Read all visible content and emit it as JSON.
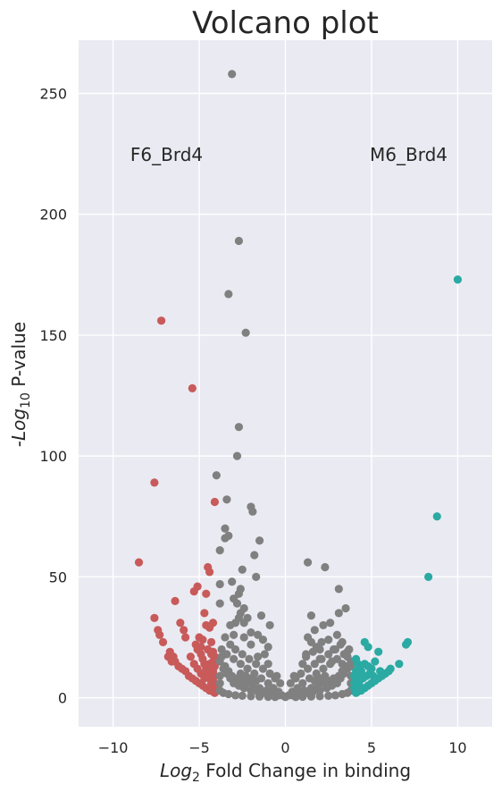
{
  "chart_data": {
    "type": "scatter",
    "title": "Volcano plot",
    "xlabel_prefix": "Log",
    "xlabel_sub": "2",
    "xlabel_suffix": " Fold Change in binding",
    "ylabel_prefix": "-Log",
    "ylabel_sub": "10",
    "ylabel_suffix": " P-value",
    "xlim": [
      -12,
      12
    ],
    "ylim": [
      -12,
      272
    ],
    "xticks": [
      -10,
      -5,
      0,
      5,
      10
    ],
    "yticks": [
      0,
      50,
      100,
      150,
      200,
      250
    ],
    "grid": true,
    "background": "#eaeaf2",
    "annotations": [
      {
        "text": "F6_Brd4",
        "x": -9.0,
        "y": 222
      },
      {
        "text": "M6_Brd4",
        "x": 4.9,
        "y": 222
      }
    ],
    "series": [
      {
        "color": "#c85a5a",
        "points": [
          [
            -7.2,
            156
          ],
          [
            -5.4,
            128
          ],
          [
            -7.6,
            89
          ],
          [
            -4.1,
            81
          ],
          [
            -8.5,
            56
          ],
          [
            -4.5,
            54
          ],
          [
            -4.4,
            52
          ],
          [
            -6.4,
            40
          ],
          [
            -5.1,
            46
          ],
          [
            -5.3,
            44
          ],
          [
            -4.6,
            43
          ],
          [
            -7.6,
            33
          ],
          [
            -6.1,
            31
          ],
          [
            -4.2,
            31
          ],
          [
            -4.7,
            35
          ],
          [
            -7.4,
            28
          ],
          [
            -7.3,
            26
          ],
          [
            -5.9,
            28
          ],
          [
            -5.8,
            25
          ],
          [
            -7.1,
            23
          ],
          [
            -5.0,
            25
          ],
          [
            -4.8,
            24
          ],
          [
            -4.6,
            30
          ],
          [
            -4.4,
            29
          ],
          [
            -4.3,
            23
          ],
          [
            -6.7,
            19
          ],
          [
            -6.5,
            17
          ],
          [
            -6.4,
            15
          ],
          [
            -6.2,
            13
          ],
          [
            -6.0,
            12
          ],
          [
            -5.8,
            11
          ],
          [
            -5.6,
            9
          ],
          [
            -5.4,
            8
          ],
          [
            -5.2,
            7
          ],
          [
            -5.0,
            6
          ],
          [
            -4.8,
            5
          ],
          [
            -4.6,
            4
          ],
          [
            -4.4,
            3
          ],
          [
            -4.2,
            2.5
          ],
          [
            -5.2,
            22
          ],
          [
            -5.1,
            20
          ],
          [
            -4.9,
            18
          ],
          [
            -4.8,
            16
          ],
          [
            -4.7,
            14
          ],
          [
            -4.6,
            12
          ],
          [
            -4.5,
            10
          ],
          [
            -4.4,
            8
          ],
          [
            -4.3,
            6
          ],
          [
            -4.2,
            19
          ],
          [
            -4.1,
            17
          ],
          [
            -4.2,
            15
          ],
          [
            -4.1,
            13
          ],
          [
            -4.2,
            11
          ],
          [
            -4.1,
            9
          ],
          [
            -4.2,
            7
          ],
          [
            -4.1,
            5
          ],
          [
            -4.0,
            4
          ],
          [
            -5.5,
            17
          ],
          [
            -5.3,
            14
          ],
          [
            -5.1,
            12
          ],
          [
            -4.9,
            10
          ],
          [
            -4.7,
            8
          ],
          [
            -6.8,
            17
          ],
          [
            -6.6,
            15
          ],
          [
            -4.9,
            21
          ],
          [
            -4.5,
            20
          ],
          [
            -4.3,
            18
          ],
          [
            -4.4,
            14
          ],
          [
            -4.3,
            12
          ],
          [
            -4.2,
            10
          ],
          [
            -4.3,
            9
          ],
          [
            -4.1,
            3
          ],
          [
            -4.1,
            2
          ]
        ]
      },
      {
        "color": "#808080",
        "points": [
          [
            -3.1,
            258
          ],
          [
            -2.7,
            189
          ],
          [
            -3.3,
            167
          ],
          [
            -2.3,
            151
          ],
          [
            -2.7,
            112
          ],
          [
            -2.8,
            100
          ],
          [
            -4.0,
            92
          ],
          [
            -3.4,
            82
          ],
          [
            -2.0,
            79
          ],
          [
            -1.9,
            77
          ],
          [
            -3.5,
            70
          ],
          [
            -3.3,
            67
          ],
          [
            -3.5,
            66
          ],
          [
            -1.5,
            65
          ],
          [
            -3.8,
            61
          ],
          [
            -1.8,
            59
          ],
          [
            -2.5,
            53
          ],
          [
            -3.1,
            48
          ],
          [
            -3.8,
            47
          ],
          [
            -1.7,
            50
          ],
          [
            -2.6,
            45
          ],
          [
            -2.7,
            43
          ],
          [
            -3.0,
            41
          ],
          [
            -2.8,
            39
          ],
          [
            -2.4,
            37
          ],
          [
            -3.8,
            39
          ],
          [
            -2.6,
            35
          ],
          [
            -2.7,
            33
          ],
          [
            -3.2,
            30
          ],
          [
            -2.2,
            33
          ],
          [
            -1.4,
            34
          ],
          [
            -0.9,
            30
          ],
          [
            -2.9,
            31
          ],
          [
            -2.4,
            31
          ],
          [
            -2.0,
            27
          ],
          [
            -1.6,
            26
          ],
          [
            -1.3,
            24
          ],
          [
            -1.0,
            21
          ],
          [
            1.3,
            56
          ],
          [
            2.3,
            54
          ],
          [
            3.1,
            45
          ],
          [
            3.5,
            37
          ],
          [
            3.1,
            35
          ],
          [
            1.5,
            34
          ],
          [
            2.6,
            31
          ],
          [
            2.2,
            30
          ],
          [
            1.7,
            28
          ],
          [
            1.3,
            25
          ],
          [
            1.5,
            23
          ],
          [
            2.1,
            23
          ],
          [
            2.5,
            24
          ],
          [
            3.3,
            23
          ],
          [
            1.8,
            21
          ],
          [
            2.8,
            20
          ],
          [
            3.6,
            19
          ],
          [
            1.2,
            17
          ],
          [
            2.0,
            16
          ],
          [
            2.7,
            15
          ],
          [
            3.3,
            14
          ],
          [
            3.8,
            13
          ],
          [
            -3.7,
            20
          ],
          [
            -3.4,
            18
          ],
          [
            -3.0,
            16
          ],
          [
            -2.6,
            14
          ],
          [
            -2.2,
            12
          ],
          [
            -1.8,
            10
          ],
          [
            -1.4,
            8
          ],
          [
            -1.0,
            6
          ],
          [
            -0.7,
            4
          ],
          [
            -0.4,
            2.5
          ],
          [
            -0.2,
            1
          ],
          [
            0.0,
            0.3
          ],
          [
            0.2,
            1
          ],
          [
            0.4,
            2.5
          ],
          [
            0.7,
            4
          ],
          [
            1.0,
            6
          ],
          [
            1.4,
            8
          ],
          [
            1.8,
            10
          ],
          [
            2.2,
            12
          ],
          [
            2.6,
            14
          ],
          [
            3.0,
            16
          ],
          [
            3.4,
            18
          ],
          [
            3.7,
            20
          ],
          [
            -3.8,
            15
          ],
          [
            -3.6,
            12
          ],
          [
            -3.4,
            10
          ],
          [
            -3.2,
            8
          ],
          [
            -3.0,
            6
          ],
          [
            -2.7,
            5
          ],
          [
            -2.4,
            4
          ],
          [
            -2.0,
            3
          ],
          [
            -1.6,
            2.5
          ],
          [
            -1.2,
            2
          ],
          [
            -0.8,
            1.5
          ],
          [
            -0.4,
            1
          ],
          [
            0.4,
            1
          ],
          [
            0.8,
            1.5
          ],
          [
            1.2,
            2
          ],
          [
            1.6,
            2.5
          ],
          [
            2.0,
            3
          ],
          [
            2.4,
            4
          ],
          [
            2.7,
            5
          ],
          [
            3.0,
            6
          ],
          [
            3.2,
            8
          ],
          [
            3.4,
            10
          ],
          [
            3.6,
            12
          ],
          [
            3.8,
            15
          ],
          [
            -3.8,
            9
          ],
          [
            -3.8,
            6
          ],
          [
            -3.8,
            3
          ],
          [
            -3.6,
            2
          ],
          [
            -3.3,
            1.5
          ],
          [
            -2.9,
            1
          ],
          [
            -2.5,
            0.8
          ],
          [
            -2.0,
            0.6
          ],
          [
            -1.5,
            0.5
          ],
          [
            -1.0,
            0.4
          ],
          [
            -0.6,
            0.3
          ],
          [
            0.6,
            0.3
          ],
          [
            1.0,
            0.4
          ],
          [
            1.5,
            0.5
          ],
          [
            2.0,
            0.6
          ],
          [
            2.5,
            0.8
          ],
          [
            2.9,
            1
          ],
          [
            3.3,
            1.5
          ],
          [
            3.6,
            2
          ],
          [
            3.8,
            3
          ],
          [
            3.8,
            6
          ],
          [
            3.8,
            9
          ],
          [
            -3.2,
            22
          ],
          [
            -2.9,
            20
          ],
          [
            -2.5,
            18
          ],
          [
            -2.1,
            16
          ],
          [
            -1.7,
            14
          ],
          [
            -1.3,
            12
          ],
          [
            -0.9,
            10
          ],
          [
            -0.6,
            8
          ],
          [
            -0.3,
            6
          ],
          [
            0.3,
            6
          ],
          [
            0.6,
            8
          ],
          [
            0.9,
            10
          ],
          [
            1.3,
            12
          ],
          [
            1.7,
            14
          ],
          [
            2.1,
            16
          ],
          [
            2.5,
            18
          ],
          [
            2.9,
            20
          ],
          [
            3.2,
            22
          ],
          [
            -3.5,
            25
          ],
          [
            -2.0,
            22
          ],
          [
            -1.2,
            18
          ],
          [
            1.2,
            18
          ],
          [
            2.0,
            20
          ],
          [
            3.0,
            26
          ],
          [
            -3.5,
            13
          ],
          [
            -3.3,
            11
          ],
          [
            -3.1,
            9
          ],
          [
            -2.8,
            8
          ],
          [
            -2.5,
            7
          ],
          [
            -2.2,
            6
          ],
          [
            -1.9,
            5
          ],
          [
            -1.5,
            4
          ],
          [
            -1.1,
            3
          ],
          [
            -0.8,
            2
          ],
          [
            0.8,
            2
          ],
          [
            1.1,
            3
          ],
          [
            1.5,
            4
          ],
          [
            1.9,
            5
          ],
          [
            2.2,
            6
          ],
          [
            2.5,
            7
          ],
          [
            2.8,
            8
          ],
          [
            3.1,
            9
          ],
          [
            3.3,
            11
          ],
          [
            3.5,
            13
          ],
          [
            -2.6,
            10
          ],
          [
            -2.3,
            9
          ],
          [
            -2.0,
            8
          ],
          [
            -1.7,
            7
          ],
          [
            2.3,
            9
          ],
          [
            2.0,
            8
          ],
          [
            1.7,
            7
          ],
          [
            -1.6,
            17
          ],
          [
            -0.5,
            9
          ],
          [
            0.5,
            9
          ],
          [
            1.6,
            19
          ],
          [
            3.6,
            17
          ],
          [
            -3.7,
            17
          ],
          [
            -3.0,
            26
          ],
          [
            -2.4,
            25
          ],
          [
            1.0,
            14
          ],
          [
            -1.0,
            14
          ]
        ]
      },
      {
        "color": "#2aaaa2",
        "points": [
          [
            10.0,
            173
          ],
          [
            8.8,
            75
          ],
          [
            8.3,
            50
          ],
          [
            7.1,
            23
          ],
          [
            7.0,
            22
          ],
          [
            5.4,
            19
          ],
          [
            4.6,
            23
          ],
          [
            4.8,
            21
          ],
          [
            6.6,
            14
          ],
          [
            5.2,
            15
          ],
          [
            6.1,
            12
          ],
          [
            6.0,
            11
          ],
          [
            5.8,
            10
          ],
          [
            5.6,
            9
          ],
          [
            5.4,
            8
          ],
          [
            5.2,
            7
          ],
          [
            5.0,
            6
          ],
          [
            4.8,
            5
          ],
          [
            4.6,
            4
          ],
          [
            4.4,
            3
          ],
          [
            4.2,
            2.5
          ],
          [
            4.1,
            2
          ],
          [
            4.9,
            10
          ],
          [
            4.7,
            9
          ],
          [
            4.5,
            8
          ],
          [
            4.3,
            7
          ],
          [
            4.2,
            6
          ],
          [
            4.1,
            5
          ],
          [
            4.0,
            4
          ],
          [
            4.3,
            12
          ],
          [
            4.2,
            10
          ],
          [
            4.1,
            8
          ],
          [
            4.0,
            6
          ],
          [
            4.6,
            14
          ],
          [
            4.4,
            11
          ],
          [
            5.0,
            12
          ],
          [
            4.1,
            16
          ],
          [
            4.2,
            14
          ],
          [
            4.1,
            11
          ],
          [
            4.0,
            9
          ],
          [
            4.8,
            13
          ],
          [
            4.3,
            5
          ],
          [
            4.1,
            3
          ],
          [
            5.5,
            11
          ],
          [
            5.1,
            9
          ]
        ]
      }
    ]
  }
}
